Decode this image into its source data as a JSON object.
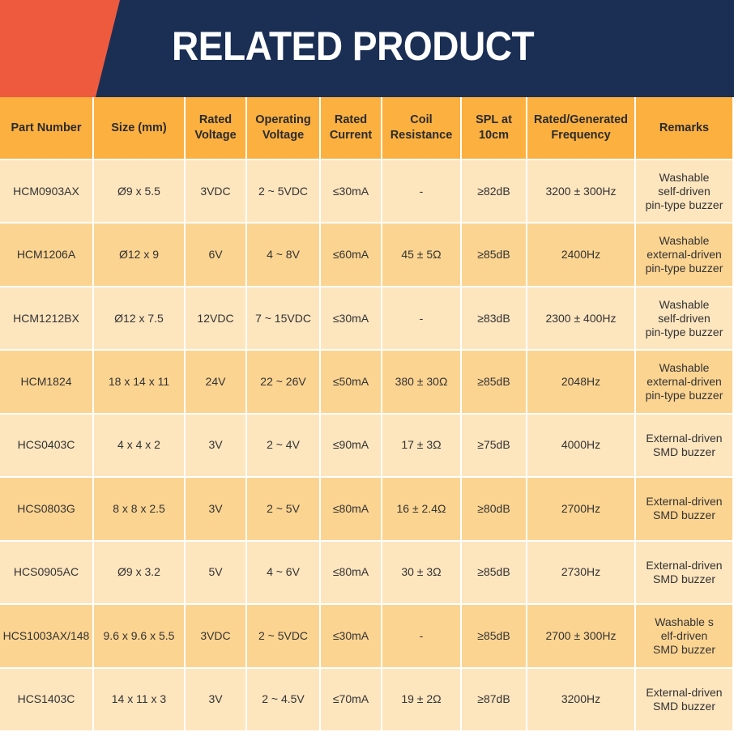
{
  "header": {
    "title": "RELATED PRODUCT"
  },
  "table": {
    "columns": [
      [
        "Part Number"
      ],
      [
        "Size (mm)"
      ],
      [
        "Rated",
        "Voltage"
      ],
      [
        "Operating",
        "Voltage"
      ],
      [
        "Rated",
        "Current"
      ],
      [
        "Coil",
        "Resistance"
      ],
      [
        "SPL at",
        "10cm"
      ],
      [
        "Rated/Generated",
        "Frequency"
      ],
      [
        "Remarks"
      ]
    ],
    "rows": [
      [
        "HCM0903AX",
        "Ø9 x 5.5",
        "3VDC",
        "2 ~ 5VDC",
        "≤30mA",
        "-",
        "≥82dB",
        "3200 ± 300Hz",
        [
          "Washable",
          "self-driven",
          "pin-type buzzer"
        ]
      ],
      [
        "HCM1206A",
        "Ø12 x 9",
        "6V",
        "4 ~ 8V",
        "≤60mA",
        "45 ± 5Ω",
        "≥85dB",
        "2400Hz",
        [
          "Washable",
          "external-driven",
          "pin-type buzzer"
        ]
      ],
      [
        "HCM1212BX",
        "Ø12 x 7.5",
        "12VDC",
        "7 ~ 15VDC",
        "≤30mA",
        "-",
        "≥83dB",
        "2300 ± 400Hz",
        [
          "Washable",
          "self-driven",
          "pin-type buzzer"
        ]
      ],
      [
        "HCM1824",
        "18 x 14 x 11",
        "24V",
        "22 ~ 26V",
        "≤50mA",
        "380 ± 30Ω",
        "≥85dB",
        "2048Hz",
        [
          "Washable",
          "external-driven",
          "pin-type buzzer"
        ]
      ],
      [
        "HCS0403C",
        "4 x 4 x 2",
        "3V",
        "2 ~ 4V",
        "≤90mA",
        "17 ± 3Ω",
        "≥75dB",
        "4000Hz",
        [
          "External-driven",
          "SMD buzzer"
        ]
      ],
      [
        "HCS0803G",
        "8 x 8 x 2.5",
        "3V",
        "2 ~ 5V",
        "≤80mA",
        "16 ± 2.4Ω",
        "≥80dB",
        "2700Hz",
        [
          "External-driven",
          "SMD buzzer"
        ]
      ],
      [
        "HCS0905AC",
        "Ø9 x 3.2",
        "5V",
        "4 ~ 6V",
        "≤80mA",
        "30 ± 3Ω",
        "≥85dB",
        "2730Hz",
        [
          "External-driven",
          "SMD buzzer"
        ]
      ],
      [
        "HCS1003AX/148",
        "9.6 x 9.6 x 5.5",
        "3VDC",
        "2 ~ 5VDC",
        "≤30mA",
        "-",
        "≥85dB",
        "2700 ± 300Hz",
        [
          "Washable s",
          "elf-driven",
          "SMD buzzer"
        ]
      ],
      [
        "HCS1403C",
        "14 x 11 x 3",
        "3V",
        "2 ~ 4.5V",
        "≤70mA",
        "19 ± 2Ω",
        "≥87dB",
        "3200Hz",
        [
          "External-driven",
          "SMD buzzer"
        ]
      ]
    ]
  }
}
